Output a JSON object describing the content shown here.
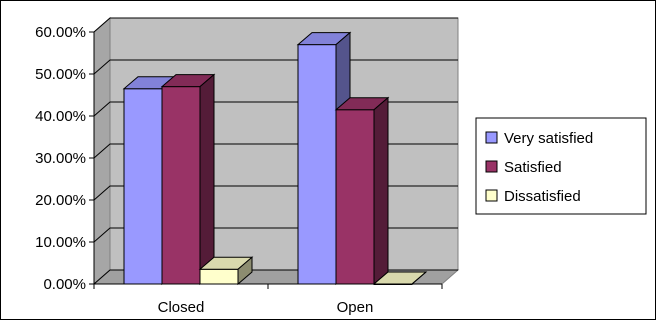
{
  "chart_data": {
    "type": "bar",
    "three_d": true,
    "categories": [
      "Closed",
      "Open"
    ],
    "series": [
      {
        "name": "Very satisfied",
        "color": "#9999ff",
        "values": [
          46.5,
          57
        ]
      },
      {
        "name": "Satisfied",
        "color": "#993366",
        "values": [
          47,
          41.5
        ]
      },
      {
        "name": "Dissatisfied",
        "color": "#ffffcc",
        "values": [
          3.5,
          0
        ]
      }
    ],
    "ylim": [
      0,
      60
    ],
    "yticks": [
      "0.00%",
      "10.00%",
      "20.00%",
      "30.00%",
      "40.00%",
      "50.00%",
      "60.00%"
    ],
    "grid": true,
    "legend_position": "right",
    "wall_color": "#c0c0c0"
  }
}
